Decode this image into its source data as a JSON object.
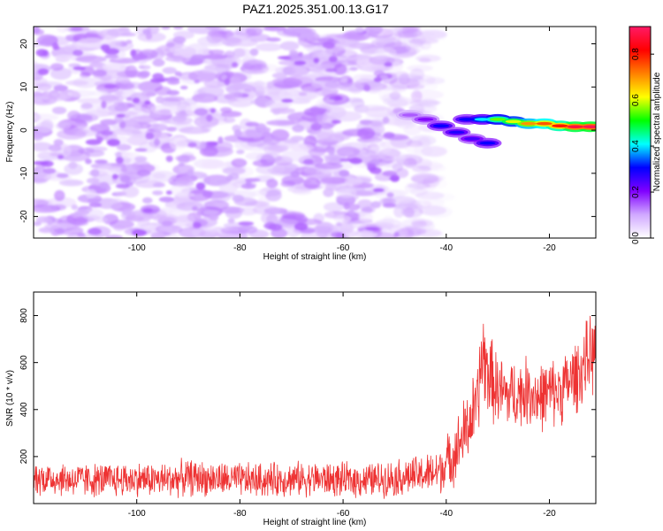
{
  "figure": {
    "title": "PAZ1.2025.351.00.13.G17"
  },
  "chart_data": [
    {
      "type": "heatmap",
      "title": "PAZ1.2025.351.00.13.G17",
      "xlabel": "Height of straight line (km)",
      "ylabel": "Frequency (Hz)",
      "xlim": [
        -120,
        -11
      ],
      "ylim": [
        -25,
        24
      ],
      "xticks": [
        -100,
        -80,
        -60,
        -40,
        -20
      ],
      "yticks": [
        20,
        10,
        0,
        -10,
        -20
      ],
      "xtick_labels": [
        "-100",
        "-80",
        "-60",
        "-40",
        "-20"
      ],
      "ytick_labels": [
        "20",
        "10",
        "0",
        "-10",
        "-20"
      ],
      "colorbar": {
        "label": "Normalized spectral amplitude",
        "range": [
          0.0,
          0.92
        ],
        "ticks": [
          0.0,
          0.2,
          0.4,
          0.6,
          0.8
        ],
        "tick_labels": [
          "0.0",
          "0.2",
          "0.4",
          "0.6",
          "0.8"
        ],
        "colors": [
          "#ffffff",
          "#d0a8ff",
          "#8000ff",
          "#0000ff",
          "#00ffff",
          "#00ff00",
          "#ffff00",
          "#ff8000",
          "#ff0000",
          "#ff1a66"
        ]
      },
      "noise_region": {
        "x_range": [
          -120,
          -42
        ],
        "freq_range": [
          -25,
          24
        ],
        "typical_amplitude": [
          0.02,
          0.15
        ]
      },
      "signal_track": [
        {
          "x": -47,
          "freq": 3.5,
          "amplitude": 0.15
        },
        {
          "x": -44,
          "freq": 2.5,
          "amplitude": 0.2
        },
        {
          "x": -41,
          "freq": 1.0,
          "amplitude": 0.3
        },
        {
          "x": -38,
          "freq": -0.5,
          "amplitude": 0.28
        },
        {
          "x": -35,
          "freq": -2.0,
          "amplitude": 0.25
        },
        {
          "x": -32,
          "freq": -3.0,
          "amplitude": 0.3
        },
        {
          "x": -36,
          "freq": 2.5,
          "amplitude": 0.3
        },
        {
          "x": -33,
          "freq": 2.5,
          "amplitude": 0.4
        },
        {
          "x": -30,
          "freq": 2.5,
          "amplitude": 0.55
        },
        {
          "x": -27,
          "freq": 2.0,
          "amplitude": 0.6
        },
        {
          "x": -24,
          "freq": 1.5,
          "amplitude": 0.7
        },
        {
          "x": -21,
          "freq": 1.5,
          "amplitude": 0.75
        },
        {
          "x": -18,
          "freq": 1.0,
          "amplitude": 0.8
        },
        {
          "x": -15,
          "freq": 0.8,
          "amplitude": 0.88
        },
        {
          "x": -12,
          "freq": 0.8,
          "amplitude": 0.9
        }
      ]
    },
    {
      "type": "line",
      "xlabel": "Height of straight line (km)",
      "ylabel": "SNR (10 * v/v)",
      "xlim": [
        -120,
        -11
      ],
      "ylim": [
        0,
        900
      ],
      "xticks": [
        -100,
        -80,
        -60,
        -40,
        -20
      ],
      "yticks": [
        200,
        400,
        600,
        800
      ],
      "xtick_labels": [
        "-100",
        "-80",
        "-60",
        "-40",
        "-20"
      ],
      "ytick_labels": [
        "200",
        "400",
        "600",
        "800"
      ],
      "series": [
        {
          "name": "SNR",
          "color": "#ee3333",
          "x": [
            -120,
            -115,
            -110,
            -105,
            -100,
            -95,
            -90,
            -85,
            -80,
            -75,
            -70,
            -65,
            -60,
            -55,
            -50,
            -45,
            -42,
            -40,
            -38,
            -36,
            -34,
            -33,
            -32,
            -30,
            -28,
            -26,
            -24,
            -22,
            -20,
            -18,
            -16,
            -14,
            -12,
            -11
          ],
          "y": [
            110,
            105,
            100,
            100,
            105,
            100,
            110,
            105,
            100,
            100,
            105,
            105,
            100,
            100,
            110,
            120,
            130,
            170,
            230,
            320,
            420,
            640,
            560,
            480,
            460,
            470,
            480,
            450,
            470,
            480,
            520,
            560,
            640,
            620
          ],
          "noise_amplitude": [
            70,
            70,
            70,
            70,
            70,
            70,
            75,
            70,
            70,
            70,
            70,
            70,
            70,
            70,
            75,
            80,
            90,
            110,
            130,
            150,
            160,
            200,
            180,
            150,
            140,
            140,
            140,
            140,
            140,
            140,
            140,
            150,
            160,
            160
          ]
        }
      ]
    }
  ]
}
